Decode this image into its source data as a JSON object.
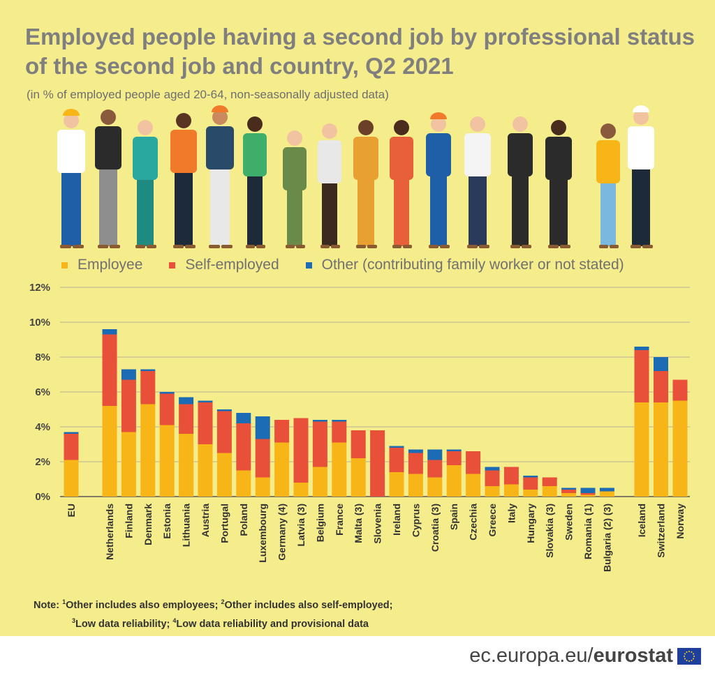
{
  "title": "Employed people having a second job by professional status of the second job and country, Q2 2021",
  "subtitle": "(in % of employed people aged 20-64, non-seasonally adjusted data)",
  "legend": [
    {
      "label": "Employee",
      "color": "#f7b518"
    },
    {
      "label": "Self-employed",
      "color": "#e8503a"
    },
    {
      "label": "Other (contributing family worker or not stated)",
      "color": "#1b6cb5"
    }
  ],
  "note": {
    "prefix": "Note: ",
    "l1a": "Other includes also employees; ",
    "l1b": "Other includes also self-employed;",
    "l2a": "Low data reliability; ",
    "l2b": "Low data reliability and provisional data",
    "n1": "1",
    "n2": "2",
    "n3": "3",
    "n4": "4"
  },
  "footer": {
    "site": "ec.europa.eu/",
    "brand": "eurostat"
  },
  "chart_data": {
    "type": "bar",
    "stacked": true,
    "ylim": [
      0,
      12
    ],
    "yticks": [
      "0%",
      "2%",
      "4%",
      "6%",
      "8%",
      "10%",
      "12%"
    ],
    "grid": true,
    "legend_position": "top",
    "categories": [
      "EU",
      "Netherlands",
      "Finland",
      "Denmark",
      "Estonia",
      "Lithuania",
      "Austria",
      "Portugal",
      "Poland",
      "Luxembourg",
      "Germany (4)",
      "Latvia (3)",
      "Belgium",
      "France",
      "Malta (3)",
      "Slovenia",
      "Ireland",
      "Cyprus",
      "Croatia (3)",
      "Spain",
      "Czechia",
      "Greece",
      "Italy",
      "Hungary",
      "Slovakia (3)",
      "Sweden",
      "Romania (1)",
      "Bulgaria (2) (3)",
      "Iceland",
      "Switzerland",
      "Norway"
    ],
    "series": [
      {
        "name": "Employee",
        "values": [
          2.1,
          5.2,
          3.7,
          5.3,
          4.1,
          3.6,
          3.0,
          2.5,
          1.5,
          1.1,
          3.1,
          0.8,
          1.7,
          3.1,
          2.2,
          0.0,
          1.4,
          1.3,
          1.1,
          1.8,
          1.3,
          0.6,
          0.7,
          0.4,
          0.6,
          0.2,
          0.1,
          0.3,
          5.4,
          5.4,
          5.5
        ]
      },
      {
        "name": "Self-employed",
        "values": [
          1.5,
          4.1,
          3.0,
          1.9,
          1.8,
          1.7,
          2.4,
          2.4,
          2.7,
          2.2,
          1.3,
          3.7,
          2.6,
          1.2,
          1.6,
          3.8,
          1.4,
          1.2,
          1.0,
          0.8,
          1.3,
          0.9,
          1.0,
          0.7,
          0.5,
          0.2,
          0.1,
          0.0,
          3.0,
          1.8,
          1.2
        ]
      },
      {
        "name": "Other (contributing family worker or not stated)",
        "values": [
          0.1,
          0.3,
          0.6,
          0.1,
          0.1,
          0.4,
          0.1,
          0.1,
          0.6,
          1.3,
          0.0,
          0.0,
          0.1,
          0.1,
          0.0,
          0.0,
          0.1,
          0.2,
          0.6,
          0.1,
          0.0,
          0.2,
          0.0,
          0.1,
          0.0,
          0.1,
          0.3,
          0.2,
          0.2,
          0.8,
          0.0
        ]
      }
    ]
  }
}
